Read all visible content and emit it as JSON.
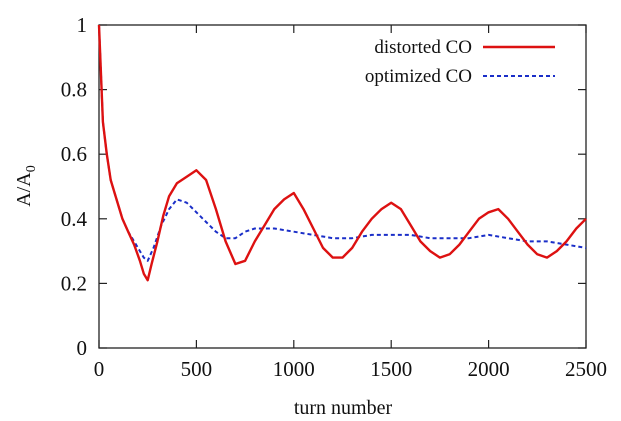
{
  "chart_data": {
    "type": "line",
    "xlabel": "turn number",
    "ylabel": "A/A",
    "ylabel_subscript": "0",
    "xlim": [
      0,
      2500
    ],
    "ylim": [
      0,
      1
    ],
    "x_ticks": [
      0,
      500,
      1000,
      1500,
      2000,
      2500
    ],
    "y_ticks": [
      0,
      0.2,
      0.4,
      0.6,
      0.8,
      1
    ],
    "y_tick_labels": [
      "0",
      "0.2",
      "0.4",
      "0.6",
      "0.8",
      "1"
    ],
    "grid": false,
    "legend_position": "top-right",
    "series": [
      {
        "name": "distorted CO",
        "color": "#dd1111",
        "dash": "solid",
        "points": [
          [
            0,
            1.0
          ],
          [
            20,
            0.7
          ],
          [
            40,
            0.6
          ],
          [
            60,
            0.52
          ],
          [
            80,
            0.48
          ],
          [
            100,
            0.44
          ],
          [
            120,
            0.4
          ],
          [
            150,
            0.36
          ],
          [
            180,
            0.32
          ],
          [
            210,
            0.27
          ],
          [
            230,
            0.23
          ],
          [
            250,
            0.21
          ],
          [
            270,
            0.26
          ],
          [
            300,
            0.33
          ],
          [
            330,
            0.41
          ],
          [
            360,
            0.47
          ],
          [
            400,
            0.51
          ],
          [
            450,
            0.53
          ],
          [
            500,
            0.55
          ],
          [
            550,
            0.52
          ],
          [
            600,
            0.43
          ],
          [
            650,
            0.33
          ],
          [
            700,
            0.26
          ],
          [
            750,
            0.27
          ],
          [
            800,
            0.33
          ],
          [
            850,
            0.38
          ],
          [
            900,
            0.43
          ],
          [
            950,
            0.46
          ],
          [
            1000,
            0.48
          ],
          [
            1050,
            0.43
          ],
          [
            1100,
            0.37
          ],
          [
            1150,
            0.31
          ],
          [
            1200,
            0.28
          ],
          [
            1250,
            0.28
          ],
          [
            1300,
            0.31
          ],
          [
            1350,
            0.36
          ],
          [
            1400,
            0.4
          ],
          [
            1450,
            0.43
          ],
          [
            1500,
            0.45
          ],
          [
            1550,
            0.43
          ],
          [
            1600,
            0.38
          ],
          [
            1650,
            0.33
          ],
          [
            1700,
            0.3
          ],
          [
            1750,
            0.28
          ],
          [
            1800,
            0.29
          ],
          [
            1850,
            0.32
          ],
          [
            1900,
            0.36
          ],
          [
            1950,
            0.4
          ],
          [
            2000,
            0.42
          ],
          [
            2050,
            0.43
          ],
          [
            2100,
            0.4
          ],
          [
            2150,
            0.36
          ],
          [
            2200,
            0.32
          ],
          [
            2250,
            0.29
          ],
          [
            2300,
            0.28
          ],
          [
            2350,
            0.3
          ],
          [
            2400,
            0.33
          ],
          [
            2450,
            0.37
          ],
          [
            2500,
            0.4
          ]
        ]
      },
      {
        "name": "optimized CO",
        "color": "#1a2ec8",
        "dash": "dotted",
        "points": [
          [
            0,
            1.0
          ],
          [
            20,
            0.7
          ],
          [
            40,
            0.6
          ],
          [
            60,
            0.52
          ],
          [
            80,
            0.48
          ],
          [
            100,
            0.44
          ],
          [
            120,
            0.4
          ],
          [
            150,
            0.36
          ],
          [
            180,
            0.33
          ],
          [
            210,
            0.3
          ],
          [
            230,
            0.28
          ],
          [
            250,
            0.27
          ],
          [
            280,
            0.31
          ],
          [
            320,
            0.38
          ],
          [
            360,
            0.43
          ],
          [
            400,
            0.46
          ],
          [
            450,
            0.45
          ],
          [
            500,
            0.42
          ],
          [
            550,
            0.39
          ],
          [
            600,
            0.36
          ],
          [
            650,
            0.34
          ],
          [
            700,
            0.34
          ],
          [
            750,
            0.36
          ],
          [
            800,
            0.37
          ],
          [
            900,
            0.37
          ],
          [
            1000,
            0.36
          ],
          [
            1100,
            0.35
          ],
          [
            1200,
            0.34
          ],
          [
            1300,
            0.34
          ],
          [
            1400,
            0.35
          ],
          [
            1500,
            0.35
          ],
          [
            1600,
            0.35
          ],
          [
            1700,
            0.34
          ],
          [
            1800,
            0.34
          ],
          [
            1900,
            0.34
          ],
          [
            2000,
            0.35
          ],
          [
            2100,
            0.34
          ],
          [
            2200,
            0.33
          ],
          [
            2300,
            0.33
          ],
          [
            2400,
            0.32
          ],
          [
            2500,
            0.31
          ]
        ]
      }
    ]
  }
}
